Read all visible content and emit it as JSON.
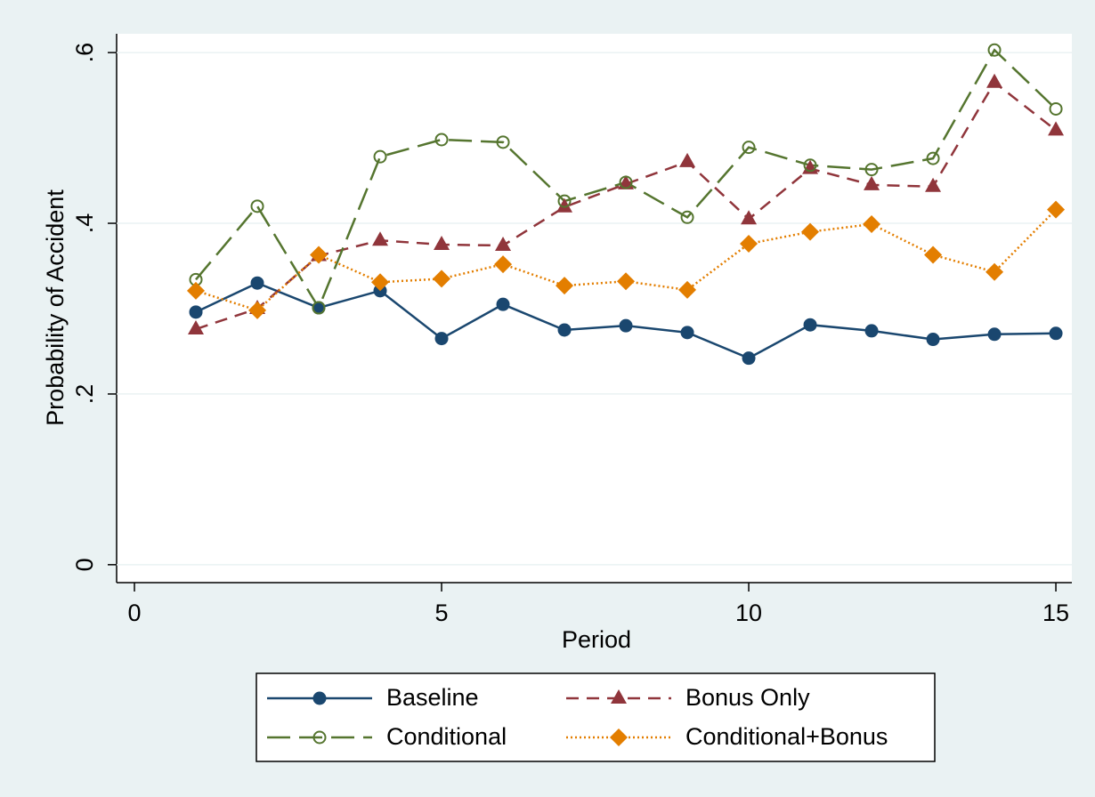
{
  "chart_data": {
    "type": "line",
    "x_label": "Period",
    "y_label": "Probability of Accident",
    "x": [
      1,
      2,
      3,
      4,
      5,
      6,
      7,
      8,
      9,
      10,
      11,
      12,
      13,
      14,
      15
    ],
    "series": [
      {
        "name": "Baseline",
        "color": "#1a476f",
        "marker": "circle",
        "dash": "solid",
        "values": [
          0.296,
          0.33,
          0.301,
          0.321,
          0.265,
          0.305,
          0.275,
          0.28,
          0.272,
          0.242,
          0.281,
          0.274,
          0.264,
          0.27,
          0.271
        ]
      },
      {
        "name": "Bonus Only",
        "color": "#90353b",
        "marker": "triangle",
        "dash": "dashed",
        "values": [
          0.276,
          0.3,
          0.362,
          0.38,
          0.375,
          0.374,
          0.419,
          0.446,
          0.472,
          0.405,
          0.464,
          0.445,
          0.443,
          0.565,
          0.509
        ]
      },
      {
        "name": "Conditional",
        "color": "#55752f",
        "marker": "hollow-circle",
        "dash": "longdash",
        "values": [
          0.334,
          0.42,
          0.301,
          0.478,
          0.498,
          0.495,
          0.426,
          0.448,
          0.407,
          0.489,
          0.468,
          0.463,
          0.476,
          0.603,
          0.534
        ]
      },
      {
        "name": "Conditional+Bonus",
        "color": "#e37e00",
        "marker": "diamond",
        "dash": "dotted",
        "values": [
          0.321,
          0.298,
          0.363,
          0.331,
          0.335,
          0.352,
          0.327,
          0.332,
          0.322,
          0.376,
          0.39,
          0.399,
          0.363,
          0.343,
          0.416
        ]
      }
    ],
    "xlim": [
      -0.29,
      15.26
    ],
    "xticks": [
      0,
      5,
      10,
      15
    ],
    "ylim": [
      -0.021,
      0.622
    ],
    "yticks": [
      0,
      {
        "value": 0.2,
        "label": ".2"
      },
      {
        "value": 0.4,
        "label": ".4"
      },
      {
        "value": 0.6,
        "label": ".6"
      }
    ],
    "grid": true,
    "legend": "bottom"
  }
}
